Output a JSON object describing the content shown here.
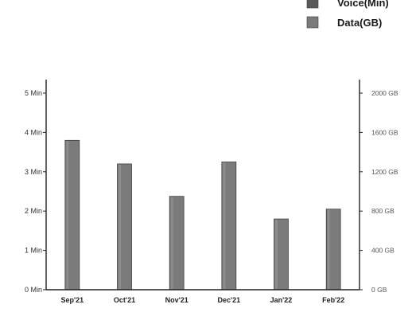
{
  "faded_top_text": "",
  "legend": {
    "items": [
      {
        "label": "Voice(Min)",
        "color": "#5a5a5a"
      },
      {
        "label": "Data(GB)",
        "color": "#7b7b7b"
      }
    ]
  },
  "chart_data": {
    "type": "bar",
    "title": "",
    "xlabel": "",
    "ylabel": "",
    "categories": [
      "Sep'21",
      "Oct'21",
      "Nov'21",
      "Dec'21",
      "Jan'22",
      "Feb'22"
    ],
    "series": [
      {
        "name": "Voice(Min)",
        "axis": "left",
        "values": [
          0,
          0,
          0,
          0,
          0,
          0
        ],
        "color": "#5a5a5a"
      },
      {
        "name": "Data(GB)",
        "axis": "right",
        "values": [
          1520,
          1280,
          950,
          1300,
          720,
          820
        ],
        "color": "#7b7b7b"
      }
    ],
    "left_axis": {
      "ylim": [
        0,
        5
      ],
      "ticks": [
        0,
        1,
        2,
        3,
        4,
        5
      ],
      "tick_labels": [
        "0 Min",
        "1 Min",
        "2 Min",
        "3 Min",
        "4 Min",
        "5 Min"
      ]
    },
    "right_axis": {
      "ylim": [
        0,
        2000
      ],
      "ticks": [
        0,
        400,
        800,
        1200,
        1600,
        2000
      ],
      "tick_labels": [
        "0 GB",
        "400 GB",
        "800 GB",
        "1200 GB",
        "1600 GB",
        "2000 GB"
      ]
    },
    "grid": false,
    "legend_position": "top-right"
  }
}
